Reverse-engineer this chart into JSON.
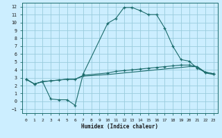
{
  "xlabel": "Humidex (Indice chaleur)",
  "bg_color": "#cceeff",
  "grid_color": "#99ccdd",
  "line_color": "#1a6b6b",
  "xlim": [
    -0.5,
    23.5
  ],
  "ylim": [
    -1.5,
    12.5
  ],
  "xticks": [
    0,
    1,
    2,
    3,
    4,
    5,
    6,
    7,
    8,
    9,
    10,
    11,
    12,
    13,
    14,
    15,
    16,
    17,
    18,
    19,
    20,
    21,
    22,
    23
  ],
  "yticks": [
    -1,
    0,
    1,
    2,
    3,
    4,
    5,
    6,
    7,
    8,
    9,
    10,
    11,
    12
  ],
  "line1_x": [
    0,
    1,
    2,
    3,
    4,
    5,
    6,
    7,
    10,
    11,
    12,
    13,
    14,
    15,
    16,
    17,
    18,
    19,
    20,
    21,
    22,
    23
  ],
  "line1_y": [
    2.8,
    2.2,
    2.5,
    0.3,
    0.2,
    0.2,
    -0.5,
    3.5,
    9.9,
    10.5,
    11.9,
    11.9,
    11.5,
    11.0,
    11.0,
    9.3,
    7.0,
    5.3,
    5.1,
    4.2,
    3.7,
    3.5
  ],
  "line2_x": [
    0,
    1,
    2,
    3,
    4,
    5,
    6,
    7,
    10,
    11,
    12,
    13,
    14,
    15,
    16,
    17,
    18,
    19,
    20,
    21,
    22,
    23
  ],
  "line2_y": [
    2.8,
    2.2,
    2.5,
    2.6,
    2.7,
    2.8,
    2.8,
    3.3,
    3.6,
    3.8,
    3.9,
    4.0,
    4.1,
    4.2,
    4.3,
    4.4,
    4.5,
    4.6,
    4.6,
    4.4,
    3.7,
    3.5
  ],
  "line3_x": [
    0,
    1,
    2,
    3,
    4,
    5,
    6,
    7,
    10,
    11,
    12,
    13,
    14,
    15,
    16,
    17,
    18,
    19,
    20,
    21,
    22,
    23
  ],
  "line3_y": [
    2.8,
    2.2,
    2.5,
    2.6,
    2.7,
    2.8,
    2.8,
    3.2,
    3.4,
    3.5,
    3.6,
    3.7,
    3.8,
    3.9,
    4.0,
    4.1,
    4.2,
    4.3,
    4.4,
    4.4,
    3.6,
    3.4
  ]
}
